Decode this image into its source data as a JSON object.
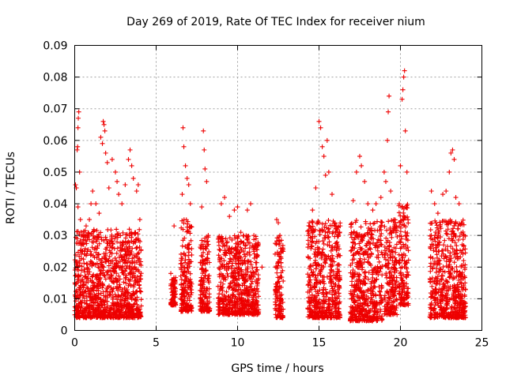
{
  "chart_data": {
    "type": "scatter",
    "title": "Day 269 of 2019, Rate Of TEC Index for receiver nium",
    "xlabel": "GPS time / hours",
    "ylabel": "ROTI / TECUs",
    "xlim": [
      0,
      25
    ],
    "ylim": [
      0,
      0.09
    ],
    "x_ticks": [
      "0",
      "5",
      "10",
      "15",
      "20",
      "25"
    ],
    "y_ticks": [
      "0",
      "0.01",
      "0.02",
      "0.03",
      "0.04",
      "0.05",
      "0.06",
      "0.07",
      "0.08",
      "0.09"
    ],
    "grid": true,
    "marker": "+",
    "marker_color": "#ee0000",
    "series": [
      {
        "points": [
          [
            0.05,
            0.046
          ],
          [
            0.1,
            0.045
          ],
          [
            0.15,
            0.057
          ],
          [
            0.18,
            0.058
          ],
          [
            0.2,
            0.064
          ],
          [
            0.22,
            0.067
          ],
          [
            0.25,
            0.069
          ],
          [
            0.3,
            0.05
          ],
          [
            0.2,
            0.039
          ],
          [
            0.35,
            0.035
          ],
          [
            0.5,
            0.03
          ],
          [
            0.7,
            0.033
          ],
          [
            0.9,
            0.035
          ],
          [
            1.0,
            0.04
          ],
          [
            1.1,
            0.044
          ],
          [
            1.3,
            0.04
          ],
          [
            1.5,
            0.037
          ],
          [
            1.6,
            0.061
          ],
          [
            1.7,
            0.059
          ],
          [
            1.75,
            0.066
          ],
          [
            1.8,
            0.065
          ],
          [
            1.85,
            0.063
          ],
          [
            1.9,
            0.056
          ],
          [
            2.0,
            0.053
          ],
          [
            2.1,
            0.045
          ],
          [
            2.3,
            0.054
          ],
          [
            2.5,
            0.05
          ],
          [
            2.6,
            0.047
          ],
          [
            2.7,
            0.043
          ],
          [
            2.9,
            0.04
          ],
          [
            3.1,
            0.046
          ],
          [
            3.3,
            0.054
          ],
          [
            3.4,
            0.057
          ],
          [
            3.5,
            0.052
          ],
          [
            3.6,
            0.048
          ],
          [
            3.8,
            0.044
          ],
          [
            3.9,
            0.046
          ],
          [
            4.0,
            0.035
          ],
          [
            5.9,
            0.018
          ],
          [
            6.0,
            0.016
          ],
          [
            6.1,
            0.033
          ],
          [
            6.6,
            0.043
          ],
          [
            6.65,
            0.064
          ],
          [
            6.7,
            0.058
          ],
          [
            6.8,
            0.052
          ],
          [
            6.9,
            0.048
          ],
          [
            7.0,
            0.046
          ],
          [
            7.1,
            0.04
          ],
          [
            7.8,
            0.039
          ],
          [
            7.9,
            0.063
          ],
          [
            7.95,
            0.057
          ],
          [
            8.0,
            0.051
          ],
          [
            8.1,
            0.047
          ],
          [
            8.2,
            0.03
          ],
          [
            9.0,
            0.04
          ],
          [
            9.2,
            0.042
          ],
          [
            9.5,
            0.036
          ],
          [
            9.8,
            0.038
          ],
          [
            10.0,
            0.039
          ],
          [
            10.2,
            0.031
          ],
          [
            10.6,
            0.038
          ],
          [
            10.8,
            0.04
          ],
          [
            11.0,
            0.03
          ],
          [
            11.5,
            0.02
          ],
          [
            12.4,
            0.035
          ],
          [
            12.5,
            0.034
          ],
          [
            12.6,
            0.03
          ],
          [
            14.4,
            0.034
          ],
          [
            14.6,
            0.038
          ],
          [
            14.8,
            0.045
          ],
          [
            15.0,
            0.066
          ],
          [
            15.1,
            0.064
          ],
          [
            15.2,
            0.058
          ],
          [
            15.3,
            0.055
          ],
          [
            15.4,
            0.049
          ],
          [
            15.5,
            0.06
          ],
          [
            15.6,
            0.05
          ],
          [
            15.8,
            0.043
          ],
          [
            16.0,
            0.033
          ],
          [
            16.2,
            0.03
          ],
          [
            16.3,
            0.033
          ],
          [
            17.1,
            0.041
          ],
          [
            17.3,
            0.05
          ],
          [
            17.5,
            0.055
          ],
          [
            17.6,
            0.052
          ],
          [
            17.8,
            0.047
          ],
          [
            18.0,
            0.04
          ],
          [
            18.3,
            0.038
          ],
          [
            18.5,
            0.04
          ],
          [
            18.8,
            0.042
          ],
          [
            19.0,
            0.05
          ],
          [
            19.1,
            0.047
          ],
          [
            19.2,
            0.06
          ],
          [
            19.25,
            0.069
          ],
          [
            19.3,
            0.074
          ],
          [
            19.4,
            0.044
          ],
          [
            19.6,
            0.035
          ],
          [
            20.0,
            0.052
          ],
          [
            20.1,
            0.073
          ],
          [
            20.15,
            0.076
          ],
          [
            20.2,
            0.08
          ],
          [
            20.25,
            0.082
          ],
          [
            20.3,
            0.063
          ],
          [
            20.4,
            0.05
          ],
          [
            21.9,
            0.044
          ],
          [
            22.1,
            0.04
          ],
          [
            22.3,
            0.037
          ],
          [
            22.6,
            0.043
          ],
          [
            22.8,
            0.044
          ],
          [
            23.0,
            0.05
          ],
          [
            23.1,
            0.056
          ],
          [
            23.2,
            0.057
          ],
          [
            23.3,
            0.054
          ],
          [
            23.4,
            0.042
          ],
          [
            23.6,
            0.04
          ],
          [
            23.9,
            0.03
          ]
        ]
      }
    ],
    "dense_bands": [
      {
        "x": [
          0.0,
          4.1
        ],
        "y": [
          0.004,
          0.032
        ]
      },
      {
        "x": [
          5.9,
          6.2
        ],
        "y": [
          0.008,
          0.017
        ]
      },
      {
        "x": [
          6.5,
          7.2
        ],
        "y": [
          0.006,
          0.035
        ]
      },
      {
        "x": [
          7.7,
          8.3
        ],
        "y": [
          0.006,
          0.03
        ]
      },
      {
        "x": [
          8.8,
          11.3
        ],
        "y": [
          0.005,
          0.03
        ]
      },
      {
        "x": [
          12.3,
          12.8
        ],
        "y": [
          0.004,
          0.03
        ]
      },
      {
        "x": [
          14.3,
          16.3
        ],
        "y": [
          0.004,
          0.035
        ]
      },
      {
        "x": [
          16.9,
          18.9
        ],
        "y": [
          0.003,
          0.035
        ]
      },
      {
        "x": [
          19.0,
          19.8
        ],
        "y": [
          0.005,
          0.035
        ]
      },
      {
        "x": [
          19.9,
          20.5
        ],
        "y": [
          0.008,
          0.04
        ]
      },
      {
        "x": [
          21.8,
          24.0
        ],
        "y": [
          0.004,
          0.035
        ]
      }
    ]
  }
}
